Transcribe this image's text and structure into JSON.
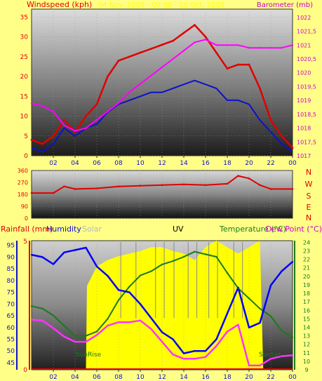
{
  "colors": {
    "page_bg": "#ffff88",
    "wind": "#e00000",
    "wind_avg": "#1010cc",
    "barometer": "#ff00ff",
    "direction": "#e00000",
    "humidity": "#0000ff",
    "solar": "#ffff00",
    "temperature": "#1a7a1a",
    "dew_point": "#ff33ff",
    "axis_red": "#e00000",
    "axis_blue": "#1010cc",
    "axis_magenta": "#cc00cc",
    "axis_green": "#1a7a1a"
  },
  "top": {
    "title": "04 Nov. 2008 - 00:00 - 10 Oct. 2008",
    "left_label": "Windspeed (kph)",
    "right_label": "Barometer (mb)"
  },
  "mid": {
    "compass": [
      "N",
      "W",
      "S",
      "E",
      "N"
    ]
  },
  "bottom": {
    "rain_label": "Rainfall (mm)",
    "humidity_label": "Humidity",
    "solar_label": "Solar",
    "uv_label": "UV",
    "temperature_label": "Temperature (°C)",
    "dewpoint_label": "Dew Point (°C)",
    "sunrise_label": "SunRise",
    "sunset_label": "SunSet"
  },
  "chart_data": [
    {
      "type": "line",
      "name": "wind-barometer",
      "xlabel": "",
      "x_ticks": [
        "02",
        "04",
        "06",
        "08",
        "10",
        "12",
        "14",
        "16",
        "18",
        "20",
        "22",
        "00"
      ],
      "ylabel": "Windspeed (kph)",
      "ylim": [
        0,
        37
      ],
      "y_ticks": [
        0,
        5,
        10,
        15,
        20,
        25,
        30,
        35
      ],
      "y2label": "Barometer (mb)",
      "y2lim": [
        1017,
        1022.3
      ],
      "y2_ticks": [
        "1017",
        "1017,5",
        "1018",
        "1018,5",
        "1019",
        "1019,5",
        "1020",
        "1020,5",
        "1021",
        "1021,5",
        "1022"
      ],
      "series": [
        {
          "name": "Windspeed",
          "axis": "left",
          "x": [
            0,
            1,
            2,
            3,
            4,
            5,
            6,
            7,
            8,
            9,
            10,
            11,
            12,
            13,
            14,
            15,
            16,
            17,
            18,
            19,
            20,
            21,
            22,
            23,
            24
          ],
          "values": [
            4,
            3,
            5,
            9,
            6,
            10,
            13,
            20,
            24,
            25,
            26,
            27,
            28,
            29,
            31,
            33,
            30,
            26,
            22,
            23,
            23,
            17,
            9,
            5,
            2
          ]
        },
        {
          "name": "Average windspeed",
          "axis": "left",
          "x": [
            0,
            1,
            2,
            3,
            4,
            5,
            6,
            7,
            8,
            9,
            10,
            11,
            12,
            13,
            14,
            15,
            16,
            17,
            18,
            19,
            20,
            21,
            22,
            23,
            24
          ],
          "values": [
            2,
            1,
            3,
            7,
            5,
            7,
            8,
            11,
            13,
            14,
            15,
            16,
            16,
            17,
            18,
            19,
            18,
            17,
            14,
            14,
            13,
            9,
            6,
            3,
            1
          ]
        },
        {
          "name": "Barometer",
          "axis": "right",
          "x": [
            0,
            1,
            2,
            3,
            4,
            5,
            6,
            7,
            8,
            9,
            10,
            11,
            12,
            13,
            14,
            15,
            16,
            17,
            18,
            19,
            20,
            21,
            22,
            23,
            24
          ],
          "values": [
            1018.9,
            1018.8,
            1018.6,
            1018.1,
            1017.9,
            1018.0,
            1018.3,
            1018.6,
            1018.9,
            1019.3,
            1019.6,
            1019.9,
            1020.2,
            1020.5,
            1020.8,
            1021.1,
            1021.2,
            1021.0,
            1021.0,
            1021.0,
            1020.9,
            1020.9,
            1020.9,
            1020.9,
            1021.0
          ]
        }
      ]
    },
    {
      "type": "line",
      "name": "wind-direction",
      "xlabel": "",
      "ylabel": "",
      "ylim": [
        0,
        360
      ],
      "y_ticks": [
        0,
        90,
        180,
        270,
        360
      ],
      "series": [
        {
          "name": "Wind direction",
          "x": [
            0,
            2,
            3,
            4,
            6,
            8,
            10,
            12,
            14,
            16,
            18,
            19,
            20,
            21,
            22,
            24
          ],
          "values": [
            190,
            190,
            240,
            220,
            225,
            240,
            245,
            250,
            255,
            250,
            260,
            320,
            300,
            250,
            220,
            220
          ]
        }
      ]
    },
    {
      "type": "line",
      "name": "temperature-humidity",
      "xlabel": "",
      "x_ticks": [
        "02",
        "04",
        "06",
        "08",
        "10",
        "12",
        "14",
        "16",
        "18",
        "20",
        "22",
        "00"
      ],
      "ylabel": "Humidity",
      "ylim": [
        42,
        97
      ],
      "y_ticks": [
        45,
        50,
        55,
        60,
        65,
        70,
        75,
        80,
        85,
        90,
        95
      ],
      "y2label": "Temperature (°C)",
      "y2lim": [
        9,
        24.2
      ],
      "y2_ticks": [
        9,
        10,
        11,
        12,
        13,
        14,
        15,
        16,
        17,
        18,
        19,
        20,
        21,
        22,
        23,
        24
      ],
      "rain_ticks": [
        0,
        5
      ],
      "series": [
        {
          "name": "Humidity",
          "axis": "left",
          "x": [
            0,
            1,
            2,
            3,
            4,
            5,
            6,
            7,
            8,
            9,
            10,
            11,
            12,
            13,
            14,
            15,
            16,
            17,
            18,
            19,
            20,
            21,
            22,
            23,
            24
          ],
          "values": [
            91,
            90,
            87,
            92,
            93,
            94,
            86,
            82,
            76,
            75,
            70,
            64,
            58,
            55,
            49,
            50,
            50,
            55,
            66,
            77,
            60,
            62,
            78,
            84,
            88
          ]
        },
        {
          "name": "Temperature",
          "axis": "right",
          "x": [
            0,
            1,
            2,
            3,
            4,
            5,
            6,
            7,
            8,
            9,
            10,
            11,
            12,
            13,
            14,
            15,
            16,
            17,
            18,
            19,
            20,
            21,
            22,
            23,
            24
          ],
          "values": [
            16.5,
            16.2,
            15.4,
            14.2,
            13.0,
            13.0,
            13.5,
            15.0,
            17.2,
            18.8,
            20.1,
            20.6,
            21.4,
            21.8,
            22.3,
            22.9,
            22.6,
            22.3,
            20.4,
            18.6,
            17.4,
            16.2,
            15.3,
            13.6,
            12.8
          ]
        },
        {
          "name": "Dew Point",
          "axis": "right",
          "x": [
            0,
            1,
            2,
            3,
            4,
            5,
            6,
            7,
            8,
            9,
            10,
            11,
            12,
            13,
            14,
            15,
            16,
            17,
            18,
            19,
            20,
            21,
            22,
            23,
            24
          ],
          "values": [
            14.9,
            14.8,
            13.9,
            12.9,
            12.3,
            12.3,
            13.1,
            14.2,
            14.6,
            14.6,
            14.8,
            13.8,
            12.3,
            10.8,
            10.3,
            10.3,
            10.5,
            11.8,
            13.5,
            14.3,
            9.5,
            9.5,
            10.3,
            10.6,
            10.7
          ]
        },
        {
          "name": "Solar",
          "axis": "fill",
          "x": [
            0,
            5,
            5.1,
            6,
            7,
            8,
            9,
            10,
            11,
            12,
            13,
            14,
            15,
            16,
            17,
            18,
            19,
            20,
            21,
            21.3,
            24
          ],
          "values": [
            0,
            0,
            0.65,
            0.8,
            0.85,
            0.88,
            0.9,
            0.92,
            0.95,
            0.95,
            0.92,
            0.9,
            0.85,
            0.95,
            1.0,
            0.95,
            0.9,
            0.95,
            1.0,
            0,
            0
          ]
        }
      ]
    }
  ]
}
